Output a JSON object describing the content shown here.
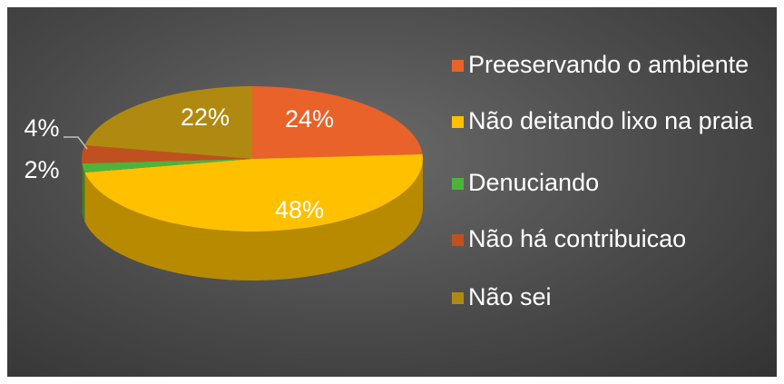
{
  "chart_data": {
    "type": "pie",
    "three_d": true,
    "title": "",
    "categories": [
      "Preeservando o ambiente",
      "Não deitando lixo na praia",
      "Denuciando",
      "Não há contribuicao",
      "Não sei"
    ],
    "values": [
      24,
      48,
      2,
      4,
      22
    ],
    "labels": [
      "24%",
      "48%",
      "2%",
      "4%",
      "22%"
    ],
    "colors": [
      "#e8622a",
      "#ffc000",
      "#4eb33a",
      "#c0501f",
      "#b08a10"
    ],
    "legend_position": "right"
  }
}
